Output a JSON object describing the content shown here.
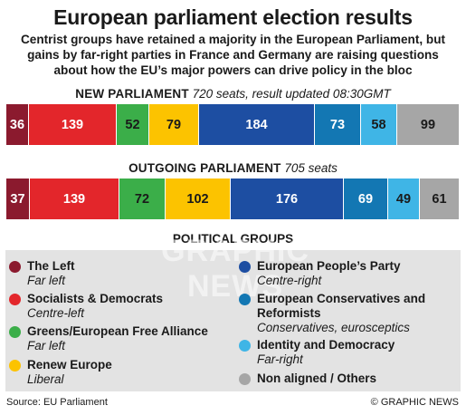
{
  "title": "European parliament election results",
  "subtitle": "Centrist groups have retained a majority in the European Parliament, but gains by far-right parties in France and Germany are raising questions about how the EU’s major powers can drive policy in the bloc",
  "new_parliament": {
    "label": "NEW PARLIAMENT",
    "note": "720 seats, result updated 08:30GMT"
  },
  "outgoing_parliament": {
    "label": "OUTGOING PARLIAMENT",
    "note": "705 seats"
  },
  "legend_title": "POLITICAL GROUPS",
  "groups": [
    {
      "name": "The Left",
      "desc": "Far left",
      "color": "#8b1a2e"
    },
    {
      "name": "Socialists & Democrats",
      "desc": "Centre-left",
      "color": "#e3262b"
    },
    {
      "name": "Greens/European Free Alliance",
      "desc": "Far left",
      "color": "#3bae49"
    },
    {
      "name": "Renew Europe",
      "desc": "Liberal",
      "color": "#fcc300"
    },
    {
      "name": "European People’s Party",
      "desc": "Centre-right",
      "color": "#1d4ea2"
    },
    {
      "name": "European Conservatives and Reformists",
      "desc": "Conservatives, eurosceptics",
      "color": "#1377b3"
    },
    {
      "name": "Identity and Democracy",
      "desc": "Far-right",
      "color": "#3fb5e6"
    },
    {
      "name": "Non aligned / Others",
      "desc": "",
      "color": "#a6a6a6"
    }
  ],
  "chart_data": [
    {
      "type": "bar",
      "title": "NEW PARLIAMENT",
      "categories": [
        "The Left",
        "Socialists & Democrats",
        "Greens/European Free Alliance",
        "Renew Europe",
        "European People’s Party",
        "European Conservatives and Reformists",
        "Identity and Democracy",
        "Non aligned / Others"
      ],
      "values": [
        36,
        139,
        52,
        79,
        184,
        73,
        58,
        99
      ],
      "total": 720,
      "stacked": true
    },
    {
      "type": "bar",
      "title": "OUTGOING PARLIAMENT",
      "categories": [
        "The Left",
        "Socialists & Democrats",
        "Greens/European Free Alliance",
        "Renew Europe",
        "European People’s Party",
        "European Conservatives and Reformists",
        "Identity and Democracy",
        "Non aligned / Others"
      ],
      "values": [
        37,
        139,
        72,
        102,
        176,
        69,
        49,
        61
      ],
      "total": 705,
      "stacked": true
    }
  ],
  "watermark": "GRAPHIC NEWS",
  "footer": {
    "source": "Source: EU Parliament",
    "credit": "© GRAPHIC NEWS"
  }
}
